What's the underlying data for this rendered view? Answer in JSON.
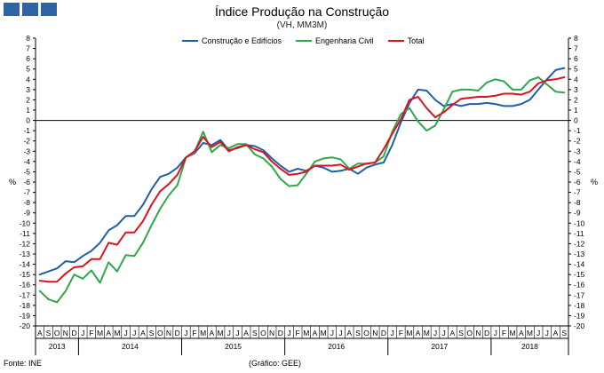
{
  "header": {
    "title": "Índice Produção na Construção",
    "subtitle": "(VH, MM3M)"
  },
  "footer": {
    "source": "Fonte: INE",
    "credit": "(Gráfico: GEE)"
  },
  "colors": {
    "construcao": "#1f5fa8",
    "engenharia": "#2ea84a",
    "total": "#d9141c",
    "logo": "#2e64a6"
  },
  "chart_data": {
    "type": "line",
    "title": "Índice Produção na Construção",
    "subtitle": "(VH, MM3M)",
    "ylabel_left": "%",
    "ylabel_right": "%",
    "ylim": [
      -20,
      8
    ],
    "yticks": [
      8,
      7,
      6,
      5,
      4,
      3,
      2,
      1,
      0,
      -1,
      -2,
      -3,
      -4,
      -5,
      -6,
      -7,
      -8,
      -9,
      -10,
      -11,
      -12,
      -13,
      -14,
      -15,
      -16,
      -17,
      -18,
      -19,
      -20
    ],
    "legend_position": "top-center",
    "month_labels": [
      "A",
      "S",
      "O",
      "N",
      "D",
      "J",
      "F",
      "M",
      "A",
      "M",
      "J",
      "J",
      "A",
      "S",
      "O",
      "N",
      "D",
      "J",
      "F",
      "M",
      "A",
      "M",
      "J",
      "J",
      "A",
      "S",
      "O",
      "N",
      "D",
      "J",
      "F",
      "M",
      "A",
      "M",
      "J",
      "J",
      "A",
      "S",
      "O",
      "N",
      "D",
      "J",
      "F",
      "M",
      "A",
      "M",
      "J",
      "J",
      "A",
      "S",
      "O",
      "N",
      "D",
      "J",
      "F",
      "M",
      "A",
      "M",
      "J",
      "J",
      "A",
      "S"
    ],
    "years": [
      {
        "label": "2013",
        "start": 0,
        "end": 4
      },
      {
        "label": "2014",
        "start": 5,
        "end": 16
      },
      {
        "label": "2015",
        "start": 17,
        "end": 28
      },
      {
        "label": "2016",
        "start": 29,
        "end": 40
      },
      {
        "label": "2017",
        "start": 41,
        "end": 52
      },
      {
        "label": "2018",
        "start": 53,
        "end": 61
      }
    ],
    "series": [
      {
        "name": "Construção e Edifícios",
        "color": "#1f5fa8",
        "values": [
          -15.0,
          -14.7,
          -14.4,
          -13.7,
          -13.8,
          -13.2,
          -12.7,
          -11.9,
          -10.7,
          -10.2,
          -9.3,
          -9.3,
          -8.2,
          -6.7,
          -5.5,
          -5.2,
          -4.6,
          -3.6,
          -3.2,
          -2.2,
          -2.4,
          -1.9,
          -2.9,
          -2.7,
          -2.4,
          -2.5,
          -2.9,
          -3.7,
          -4.4,
          -5.0,
          -4.7,
          -4.9,
          -4.4,
          -4.6,
          -5.0,
          -4.9,
          -4.7,
          -5.2,
          -4.6,
          -4.3,
          -4.1,
          -2.4,
          -0.2,
          1.7,
          3.0,
          2.9,
          2.0,
          1.4,
          1.6,
          1.4,
          1.6,
          1.6,
          1.7,
          1.6,
          1.4,
          1.4,
          1.6,
          2.0,
          3.0,
          4.0,
          4.9,
          5.1
        ]
      },
      {
        "name": "Engenharia Civil",
        "color": "#2ea84a",
        "values": [
          -16.6,
          -17.4,
          -17.7,
          -16.6,
          -15.0,
          -15.4,
          -14.6,
          -15.8,
          -13.8,
          -14.7,
          -13.1,
          -13.2,
          -11.9,
          -10.2,
          -8.6,
          -7.3,
          -6.3,
          -3.6,
          -3.1,
          -1.1,
          -3.1,
          -2.4,
          -2.7,
          -2.3,
          -2.3,
          -3.3,
          -3.7,
          -4.5,
          -5.7,
          -6.4,
          -6.3,
          -5.2,
          -4.0,
          -3.7,
          -3.6,
          -3.8,
          -4.7,
          -4.2,
          -4.2,
          -4.1,
          -3.5,
          -1.1,
          0.6,
          1.2,
          -0.1,
          -1.0,
          -0.5,
          1.1,
          2.8,
          3.0,
          3.0,
          2.9,
          3.7,
          4.0,
          3.8,
          3.0,
          3.0,
          3.9,
          4.2,
          3.5,
          2.8,
          2.7
        ]
      },
      {
        "name": "Total",
        "color": "#d9141c",
        "values": [
          -15.6,
          -15.7,
          -15.7,
          -14.9,
          -14.3,
          -14.2,
          -13.5,
          -13.5,
          -11.9,
          -12.1,
          -10.9,
          -10.9,
          -9.8,
          -8.2,
          -6.9,
          -6.2,
          -5.3,
          -3.6,
          -3.0,
          -1.6,
          -2.6,
          -2.1,
          -3.0,
          -2.6,
          -2.4,
          -2.8,
          -3.1,
          -4.0,
          -4.7,
          -5.3,
          -5.2,
          -5.0,
          -4.4,
          -4.4,
          -4.4,
          -4.3,
          -4.8,
          -4.5,
          -4.2,
          -4.1,
          -2.8,
          -1.3,
          0.1,
          2.0,
          2.3,
          1.2,
          0.3,
          0.8,
          1.5,
          2.1,
          2.2,
          2.3,
          2.3,
          2.4,
          2.6,
          2.6,
          2.5,
          2.8,
          3.6,
          3.9,
          4.0,
          4.2
        ]
      }
    ]
  }
}
